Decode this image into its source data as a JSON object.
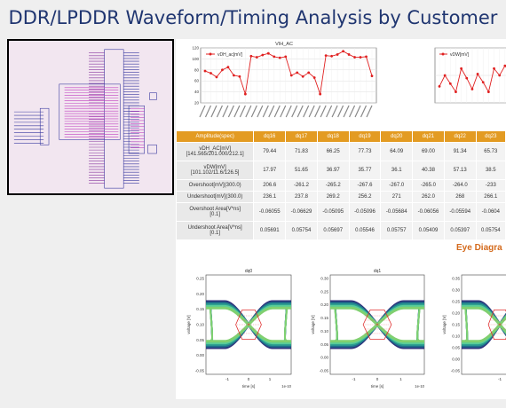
{
  "header": {
    "title": "DDR/LPDDR Waveform/Timing Analysis by Customer"
  },
  "charts": {
    "left": {
      "title": "VIH_AC",
      "legend": "vDH_ac[mV]"
    },
    "right": {
      "legend": "vDW[mV]"
    }
  },
  "table": {
    "columns": [
      "Amplitude(spec)",
      "dq16",
      "dq17",
      "dq18",
      "dq19",
      "dq20",
      "dq21",
      "dq22",
      "dq23"
    ],
    "rows": [
      {
        "label": "vDH_AC[mV]\n[141.565/201.000/212.1]",
        "values": [
          "79.44",
          "71.83",
          "66.25",
          "77.73",
          "64.09",
          "69.00",
          "91.34",
          "65.73"
        ]
      },
      {
        "label": "vDW[mV]\n[101.102/11.6/126.5]",
        "values": [
          "17.97",
          "51.65",
          "36.97",
          "35.77",
          "36.1",
          "40.38",
          "57.13",
          "38.5"
        ]
      },
      {
        "label": "Overshoot[mV](300.0)",
        "values": [
          "206.6",
          "-261.2",
          "-265.2",
          "-267.6",
          "-267.0",
          "-265.0",
          "-264.0",
          "-233"
        ]
      },
      {
        "label": "Undershoot[mV](300.0)",
        "values": [
          "236.1",
          "237.8",
          "269.2",
          "256.2",
          "271",
          "262.0",
          "268",
          "266.1"
        ]
      },
      {
        "label": "Overshoot Area[V*ns]\n[0.1]",
        "values": [
          "-0.06055",
          "-0.06629",
          "-0.05095",
          "-0.05096",
          "-0.05684",
          "-0.06056",
          "-0.05594",
          "-0.0604"
        ]
      },
      {
        "label": "Undershoot Area[V*ns]\n[0.1]",
        "values": [
          "0.05691",
          "0.05754",
          "0.05697",
          "0.05546",
          "0.05757",
          "0.05409",
          "0.05397",
          "0.05754"
        ]
      }
    ]
  },
  "eye": {
    "title": "Eye Diagra",
    "plots": [
      {
        "name": "dq0",
        "ylabel": "voltage [V]",
        "xlabel": "time [s]",
        "xscale": "1e-10",
        "yticks": [
          "0.25",
          "0.20",
          "0.15",
          "0.10",
          "0.05",
          "0.00",
          "-0.05"
        ],
        "xticks": [
          "-1",
          "0",
          "1"
        ]
      },
      {
        "name": "dq1",
        "ylabel": "voltage [V]",
        "xlabel": "time [s]",
        "xscale": "1e-10",
        "yticks": [
          "0.30",
          "0.25",
          "0.20",
          "0.15",
          "0.10",
          "0.05",
          "0.00",
          "-0.05"
        ],
        "xticks": [
          "-1",
          "0",
          "1"
        ]
      },
      {
        "name": "",
        "ylabel": "voltage [V]",
        "xlabel": "",
        "xscale": "",
        "yticks": [
          "0.35",
          "0.30",
          "0.25",
          "0.20",
          "0.15",
          "0.10",
          "0.05",
          "0.00",
          "-0.05"
        ],
        "xticks": [
          "-1"
        ]
      }
    ]
  },
  "chart_data": [
    {
      "type": "line",
      "title": "VIH_AC",
      "series": [
        {
          "name": "vDH_ac[mV]",
          "values": [
            78,
            74,
            67,
            80,
            85,
            70,
            68,
            36,
            105,
            103,
            107,
            110,
            104,
            102,
            104,
            70,
            75,
            68,
            75,
            66,
            36,
            106,
            105,
            108,
            114,
            108,
            103,
            103,
            104,
            69
          ]
        }
      ],
      "ylim": [
        20,
        120
      ],
      "yticks": [
        20,
        40,
        60,
        80,
        100,
        120
      ],
      "grid": true,
      "legend": "top-left"
    },
    {
      "type": "line",
      "series": [
        {
          "name": "vDW[mV]",
          "values": [
            42,
            50,
            44,
            38,
            55,
            48,
            40,
            51,
            45,
            38,
            55,
            50,
            57,
            52
          ]
        }
      ],
      "ylim": [
        30,
        70
      ],
      "grid": true,
      "legend": "top-left"
    }
  ]
}
